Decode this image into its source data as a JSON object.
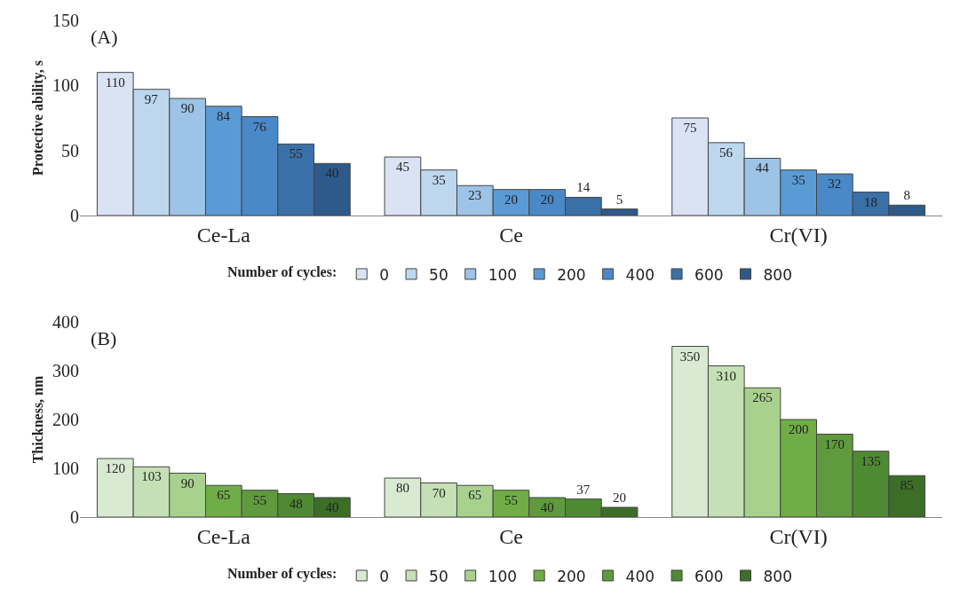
{
  "chart_data": [
    {
      "type": "bar",
      "annotations": [
        "(A)"
      ],
      "ylabel": "Protective ability, s",
      "legend_title": "Number of cycles:",
      "legend": "bottom",
      "grid": false,
      "data_labels": true,
      "categories": [
        "Ce-La",
        "Ce",
        "Cr(VI)"
      ],
      "ylim": [
        0,
        150
      ],
      "yticks": [
        0,
        50,
        100,
        150
      ],
      "series": [
        {
          "name": "0",
          "color": "#dae3f3",
          "values": [
            110,
            45,
            75
          ]
        },
        {
          "name": "50",
          "color": "#bdd7ee",
          "values": [
            97,
            35,
            56
          ]
        },
        {
          "name": "100",
          "color": "#9dc3e6",
          "values": [
            90,
            23,
            44
          ]
        },
        {
          "name": "200",
          "color": "#5b9bd5",
          "values": [
            84,
            20,
            35
          ]
        },
        {
          "name": "400",
          "color": "#4a89c8",
          "values": [
            76,
            20,
            32
          ]
        },
        {
          "name": "600",
          "color": "#3a70a8",
          "values": [
            55,
            14,
            18
          ]
        },
        {
          "name": "800",
          "color": "#2e5a8a",
          "values": [
            40,
            5,
            8
          ]
        }
      ]
    },
    {
      "type": "bar",
      "annotations": [
        "(B)"
      ],
      "ylabel": "Thickness, nm",
      "legend_title": "Number of cycles:",
      "legend": "bottom",
      "grid": false,
      "data_labels": true,
      "categories": [
        "Ce-La",
        "Ce",
        "Cr(VI)"
      ],
      "ylim": [
        0,
        400
      ],
      "yticks": [
        0,
        100,
        200,
        300,
        400
      ],
      "series": [
        {
          "name": "0",
          "color": "#d9ead3",
          "values": [
            120,
            80,
            350
          ]
        },
        {
          "name": "50",
          "color": "#c5e0b4",
          "values": [
            103,
            70,
            310
          ]
        },
        {
          "name": "100",
          "color": "#a9d18e",
          "values": [
            90,
            65,
            265
          ]
        },
        {
          "name": "200",
          "color": "#70ad47",
          "values": [
            65,
            55,
            200
          ]
        },
        {
          "name": "400",
          "color": "#5f9a3c",
          "values": [
            55,
            40,
            170
          ]
        },
        {
          "name": "600",
          "color": "#4e8a32",
          "values": [
            48,
            37,
            135
          ]
        },
        {
          "name": "800",
          "color": "#3d6e28",
          "values": [
            40,
            20,
            85
          ]
        }
      ]
    }
  ]
}
